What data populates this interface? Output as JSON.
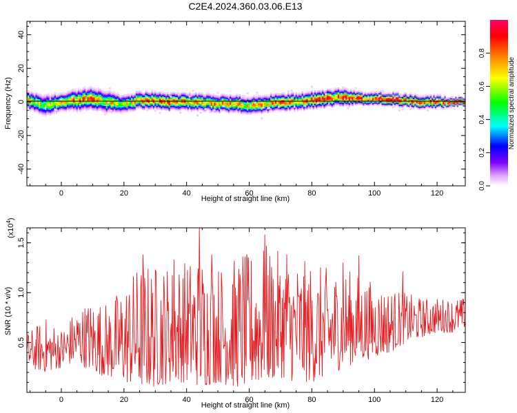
{
  "title": "C2E4.2024.360.03.06.E13",
  "chart_data": [
    {
      "type": "heatmap",
      "xlabel": "Height of straight line (km)",
      "ylabel": "Frequency (Hz)",
      "xlim": [
        -11,
        129
      ],
      "ylim": [
        -50,
        48
      ],
      "xticks": [
        0,
        20,
        40,
        60,
        80,
        100,
        120
      ],
      "yticks": [
        -40,
        -20,
        0,
        20,
        40
      ],
      "colorbar": {
        "label": "Normalized spectral amplitude",
        "range": [
          0,
          1
        ],
        "ticks": [
          "0.0",
          "0.2",
          "0.4",
          "0.6",
          "0.8"
        ],
        "colormap": [
          "#ffffff",
          "#e3a6ff",
          "#7f00ff",
          "#0000ff",
          "#00ffff",
          "#00ff00",
          "#ffff00",
          "#ff8000",
          "#ff0000",
          "#ff0066"
        ]
      },
      "ridge": {
        "description_points_km": [
          -11,
          -5,
          0,
          5,
          10,
          15,
          20,
          25,
          30,
          35,
          40,
          45,
          50,
          55,
          60,
          65,
          70,
          75,
          80,
          85,
          90,
          95,
          100,
          105,
          110,
          115,
          120,
          125,
          129
        ],
        "center_hz": [
          1,
          -2,
          0,
          1,
          2,
          0,
          -1,
          1,
          1,
          0,
          0,
          0,
          -1,
          -1,
          -2,
          -1,
          0,
          0,
          1,
          2,
          3,
          2,
          2,
          2,
          1,
          0,
          0,
          0,
          0
        ],
        "halfwidth_hz": [
          4,
          5,
          4,
          5,
          5,
          5,
          4,
          4,
          4,
          4,
          4,
          4,
          4,
          4,
          4,
          4,
          4,
          4,
          4,
          4,
          4,
          3,
          3,
          3,
          3,
          3,
          3,
          2,
          2
        ],
        "peak_amplitude": [
          0.8,
          0.6,
          0.8,
          0.85,
          0.9,
          0.75,
          0.7,
          0.8,
          0.85,
          0.9,
          0.8,
          0.85,
          0.85,
          0.8,
          0.75,
          0.8,
          0.85,
          0.8,
          0.85,
          0.9,
          0.9,
          0.95,
          0.95,
          1.0,
          0.95,
          0.9,
          0.9,
          0.95,
          1.0
        ]
      }
    },
    {
      "type": "line",
      "xlabel": "Height of straight line (km)",
      "ylabel": "SNR (10 * v/v)",
      "y_multiplier": "(x10",
      "y_multiplier_exp": "4",
      "y_multiplier_close": ")",
      "xlim": [
        -11,
        129
      ],
      "ylim": [
        0,
        1.65
      ],
      "xticks": [
        0,
        20,
        40,
        60,
        80,
        100,
        120
      ],
      "yticks": [
        "0.5",
        "1.0",
        "1.5"
      ],
      "series": [
        {
          "color": "#e8181c",
          "envelope": {
            "x": [
              -11,
              -5,
              0,
              5,
              10,
              15,
              20,
              25,
              30,
              35,
              40,
              45,
              50,
              55,
              60,
              65,
              70,
              75,
              80,
              85,
              90,
              95,
              100,
              105,
              110,
              115,
              120,
              125,
              129
            ],
            "low": [
              0.25,
              0.2,
              0.25,
              0.3,
              0.2,
              0.15,
              0.1,
              0.05,
              0.05,
              0.1,
              0.1,
              0.05,
              0.1,
              0.05,
              0.05,
              0.1,
              0.15,
              0.1,
              0.1,
              0.15,
              0.25,
              0.3,
              0.35,
              0.4,
              0.5,
              0.55,
              0.6,
              0.6,
              0.65
            ],
            "high": [
              0.6,
              0.75,
              0.65,
              0.85,
              0.95,
              0.9,
              1.1,
              1.3,
              1.3,
              1.3,
              1.35,
              1.4,
              1.3,
              1.35,
              1.4,
              1.5,
              1.4,
              1.35,
              1.3,
              1.25,
              1.25,
              1.2,
              1.1,
              1.05,
              1.0,
              0.95,
              0.95,
              0.95,
              0.95
            ],
            "spikes": [
              [
                44,
                1.65
              ],
              [
                65,
                1.58
              ],
              [
                26,
                1.38
              ],
              [
                36,
                1.33
              ],
              [
                48,
                1.38
              ],
              [
                58,
                1.36
              ],
              [
                72,
                1.38
              ],
              [
                90,
                1.3
              ],
              [
                95,
                1.37
              ],
              [
                109,
                1.21
              ]
            ]
          }
        }
      ]
    }
  ]
}
